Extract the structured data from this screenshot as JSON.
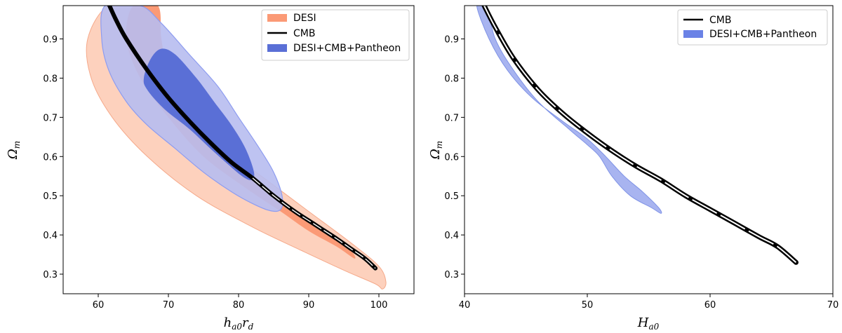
{
  "chart_data": [
    {
      "type": "contour",
      "panel": "left",
      "xlabel": "h_{a0} r_d",
      "xlabel_main": "h",
      "xlabel_sub1": "a0",
      "xlabel_mid": "r",
      "xlabel_sub2": "d",
      "ylabel": "Ω_m",
      "ylabel_main": "Ω",
      "ylabel_sub": "m",
      "xlim": [
        55,
        105
      ],
      "ylim": [
        0.25,
        0.985
      ],
      "xticks": [
        60,
        70,
        80,
        90,
        100
      ],
      "yticks": [
        0.3,
        0.4,
        0.5,
        0.6,
        0.7,
        0.8,
        0.9
      ],
      "legend_position": "top-right",
      "legend": [
        "DESI",
        "CMB",
        "DESI+CMB+Pantheon"
      ],
      "colors": {
        "desi_outer": "#fdd1bd",
        "desi_inner": "#fb9a76",
        "desi_edge": "#f5a98a",
        "combined_outer": "#b7bdf0",
        "combined_inner": "#5a6fd6",
        "combined_edge": "#8d9cf0",
        "cmb": "#000000"
      },
      "series": [
        {
          "name": "DESI 95%",
          "points": [
            [
              61.5,
              0.985
            ],
            [
              58.5,
              0.9
            ],
            [
              59,
              0.8
            ],
            [
              62,
              0.7
            ],
            [
              67,
              0.6
            ],
            [
              74,
              0.5
            ],
            [
              82,
              0.42
            ],
            [
              89,
              0.36
            ],
            [
              95,
              0.31
            ],
            [
              99.5,
              0.275
            ],
            [
              100.5,
              0.262
            ],
            [
              101,
              0.28
            ],
            [
              100,
              0.32
            ],
            [
              96,
              0.38
            ],
            [
              90,
              0.46
            ],
            [
              84,
              0.54
            ],
            [
              78,
              0.62
            ],
            [
              74,
              0.68
            ],
            [
              70,
              0.75
            ],
            [
              67.5,
              0.85
            ],
            [
              67,
              0.985
            ]
          ]
        },
        {
          "name": "DESI 68%",
          "points": [
            [
              65,
              0.985
            ],
            [
              64,
              0.9
            ],
            [
              66,
              0.8
            ],
            [
              70,
              0.7
            ],
            [
              75,
              0.6
            ],
            [
              81,
              0.52
            ],
            [
              86,
              0.46
            ],
            [
              90,
              0.41
            ],
            [
              94,
              0.37
            ],
            [
              96.5,
              0.34
            ],
            [
              96,
              0.36
            ],
            [
              93,
              0.4
            ],
            [
              88,
              0.46
            ],
            [
              83,
              0.53
            ],
            [
              78,
              0.6
            ],
            [
              73,
              0.72
            ],
            [
              70,
              0.82
            ],
            [
              69,
              0.9
            ],
            [
              68.5,
              0.985
            ]
          ]
        },
        {
          "name": "DESI+CMB+Pantheon 95%",
          "points": [
            [
              61,
              0.985
            ],
            [
              60.5,
              0.9
            ],
            [
              61.5,
              0.82
            ],
            [
              64,
              0.74
            ],
            [
              67,
              0.68
            ],
            [
              71,
              0.62
            ],
            [
              75,
              0.56
            ],
            [
              79,
              0.51
            ],
            [
              82,
              0.48
            ],
            [
              84.5,
              0.462
            ],
            [
              86,
              0.465
            ],
            [
              86.2,
              0.5
            ],
            [
              85,
              0.56
            ],
            [
              83,
              0.62
            ],
            [
              80,
              0.7
            ],
            [
              77,
              0.78
            ],
            [
              73,
              0.86
            ],
            [
              69,
              0.94
            ],
            [
              66,
              0.985
            ]
          ]
        },
        {
          "name": "DESI+CMB+Pantheon 68%",
          "points": [
            [
              67.5,
              0.85
            ],
            [
              66.5,
              0.8
            ],
            [
              67,
              0.77
            ],
            [
              69.5,
              0.72
            ],
            [
              73,
              0.67
            ],
            [
              76,
              0.62
            ],
            [
              78.5,
              0.58
            ],
            [
              80.5,
              0.55
            ],
            [
              81.8,
              0.54
            ],
            [
              82.2,
              0.56
            ],
            [
              81,
              0.62
            ],
            [
              79,
              0.68
            ],
            [
              76.5,
              0.74
            ],
            [
              74,
              0.8
            ],
            [
              71,
              0.86
            ],
            [
              69,
              0.875
            ]
          ]
        },
        {
          "name": "CMB",
          "points": [
            [
              61.6,
              0.985
            ],
            [
              62.5,
              0.95
            ],
            [
              64,
              0.9
            ],
            [
              67,
              0.82
            ],
            [
              70,
              0.75
            ],
            [
              73,
              0.69
            ],
            [
              76,
              0.635
            ],
            [
              79,
              0.585
            ],
            [
              82,
              0.545
            ],
            [
              85,
              0.5
            ],
            [
              88,
              0.46
            ],
            [
              91,
              0.425
            ],
            [
              94,
              0.39
            ],
            [
              96,
              0.365
            ],
            [
              98,
              0.34
            ],
            [
              99.5,
              0.315
            ]
          ]
        }
      ]
    },
    {
      "type": "contour",
      "panel": "right",
      "xlabel": "H_{a0}",
      "xlabel_main": "H",
      "xlabel_sub1": "a0",
      "ylabel": "Ω_m",
      "ylabel_main": "Ω",
      "ylabel_sub": "m",
      "xlim": [
        40,
        70
      ],
      "ylim": [
        0.25,
        0.985
      ],
      "xticks": [
        40,
        50,
        60,
        70
      ],
      "yticks": [
        0.3,
        0.4,
        0.5,
        0.6,
        0.7,
        0.8,
        0.9
      ],
      "legend_position": "top-right",
      "legend": [
        "CMB",
        "DESI+CMB+Pantheon"
      ],
      "colors": {
        "combined_fill": "#a8b4f0",
        "combined_edge": "#7f93e6",
        "combined_swatch": "#6a82e6",
        "cmb": "#000000"
      },
      "series": [
        {
          "name": "DESI+CMB+Pantheon",
          "points": [
            [
              41,
              0.985
            ],
            [
              42,
              0.9
            ],
            [
              43.5,
              0.82
            ],
            [
              45.5,
              0.75
            ],
            [
              48,
              0.69
            ],
            [
              50,
              0.645
            ],
            [
              51.5,
              0.6
            ],
            [
              53,
              0.55
            ],
            [
              54.5,
              0.51
            ],
            [
              55.8,
              0.47
            ],
            [
              56,
              0.455
            ],
            [
              55.2,
              0.47
            ],
            [
              53.5,
              0.5
            ],
            [
              52,
              0.55
            ],
            [
              51,
              0.6
            ],
            [
              50,
              0.63
            ],
            [
              48.5,
              0.67
            ],
            [
              46,
              0.74
            ],
            [
              44,
              0.82
            ],
            [
              42.5,
              0.9
            ],
            [
              41.8,
              0.985
            ]
          ]
        },
        {
          "name": "CMB",
          "points": [
            [
              41.6,
              0.985
            ],
            [
              42.5,
              0.93
            ],
            [
              44,
              0.85
            ],
            [
              46,
              0.77
            ],
            [
              48,
              0.71
            ],
            [
              50,
              0.66
            ],
            [
              52,
              0.615
            ],
            [
              54,
              0.575
            ],
            [
              56,
              0.54
            ],
            [
              58,
              0.5
            ],
            [
              60,
              0.465
            ],
            [
              62,
              0.43
            ],
            [
              64,
              0.395
            ],
            [
              65.5,
              0.37
            ],
            [
              67,
              0.33
            ]
          ]
        }
      ]
    }
  ]
}
